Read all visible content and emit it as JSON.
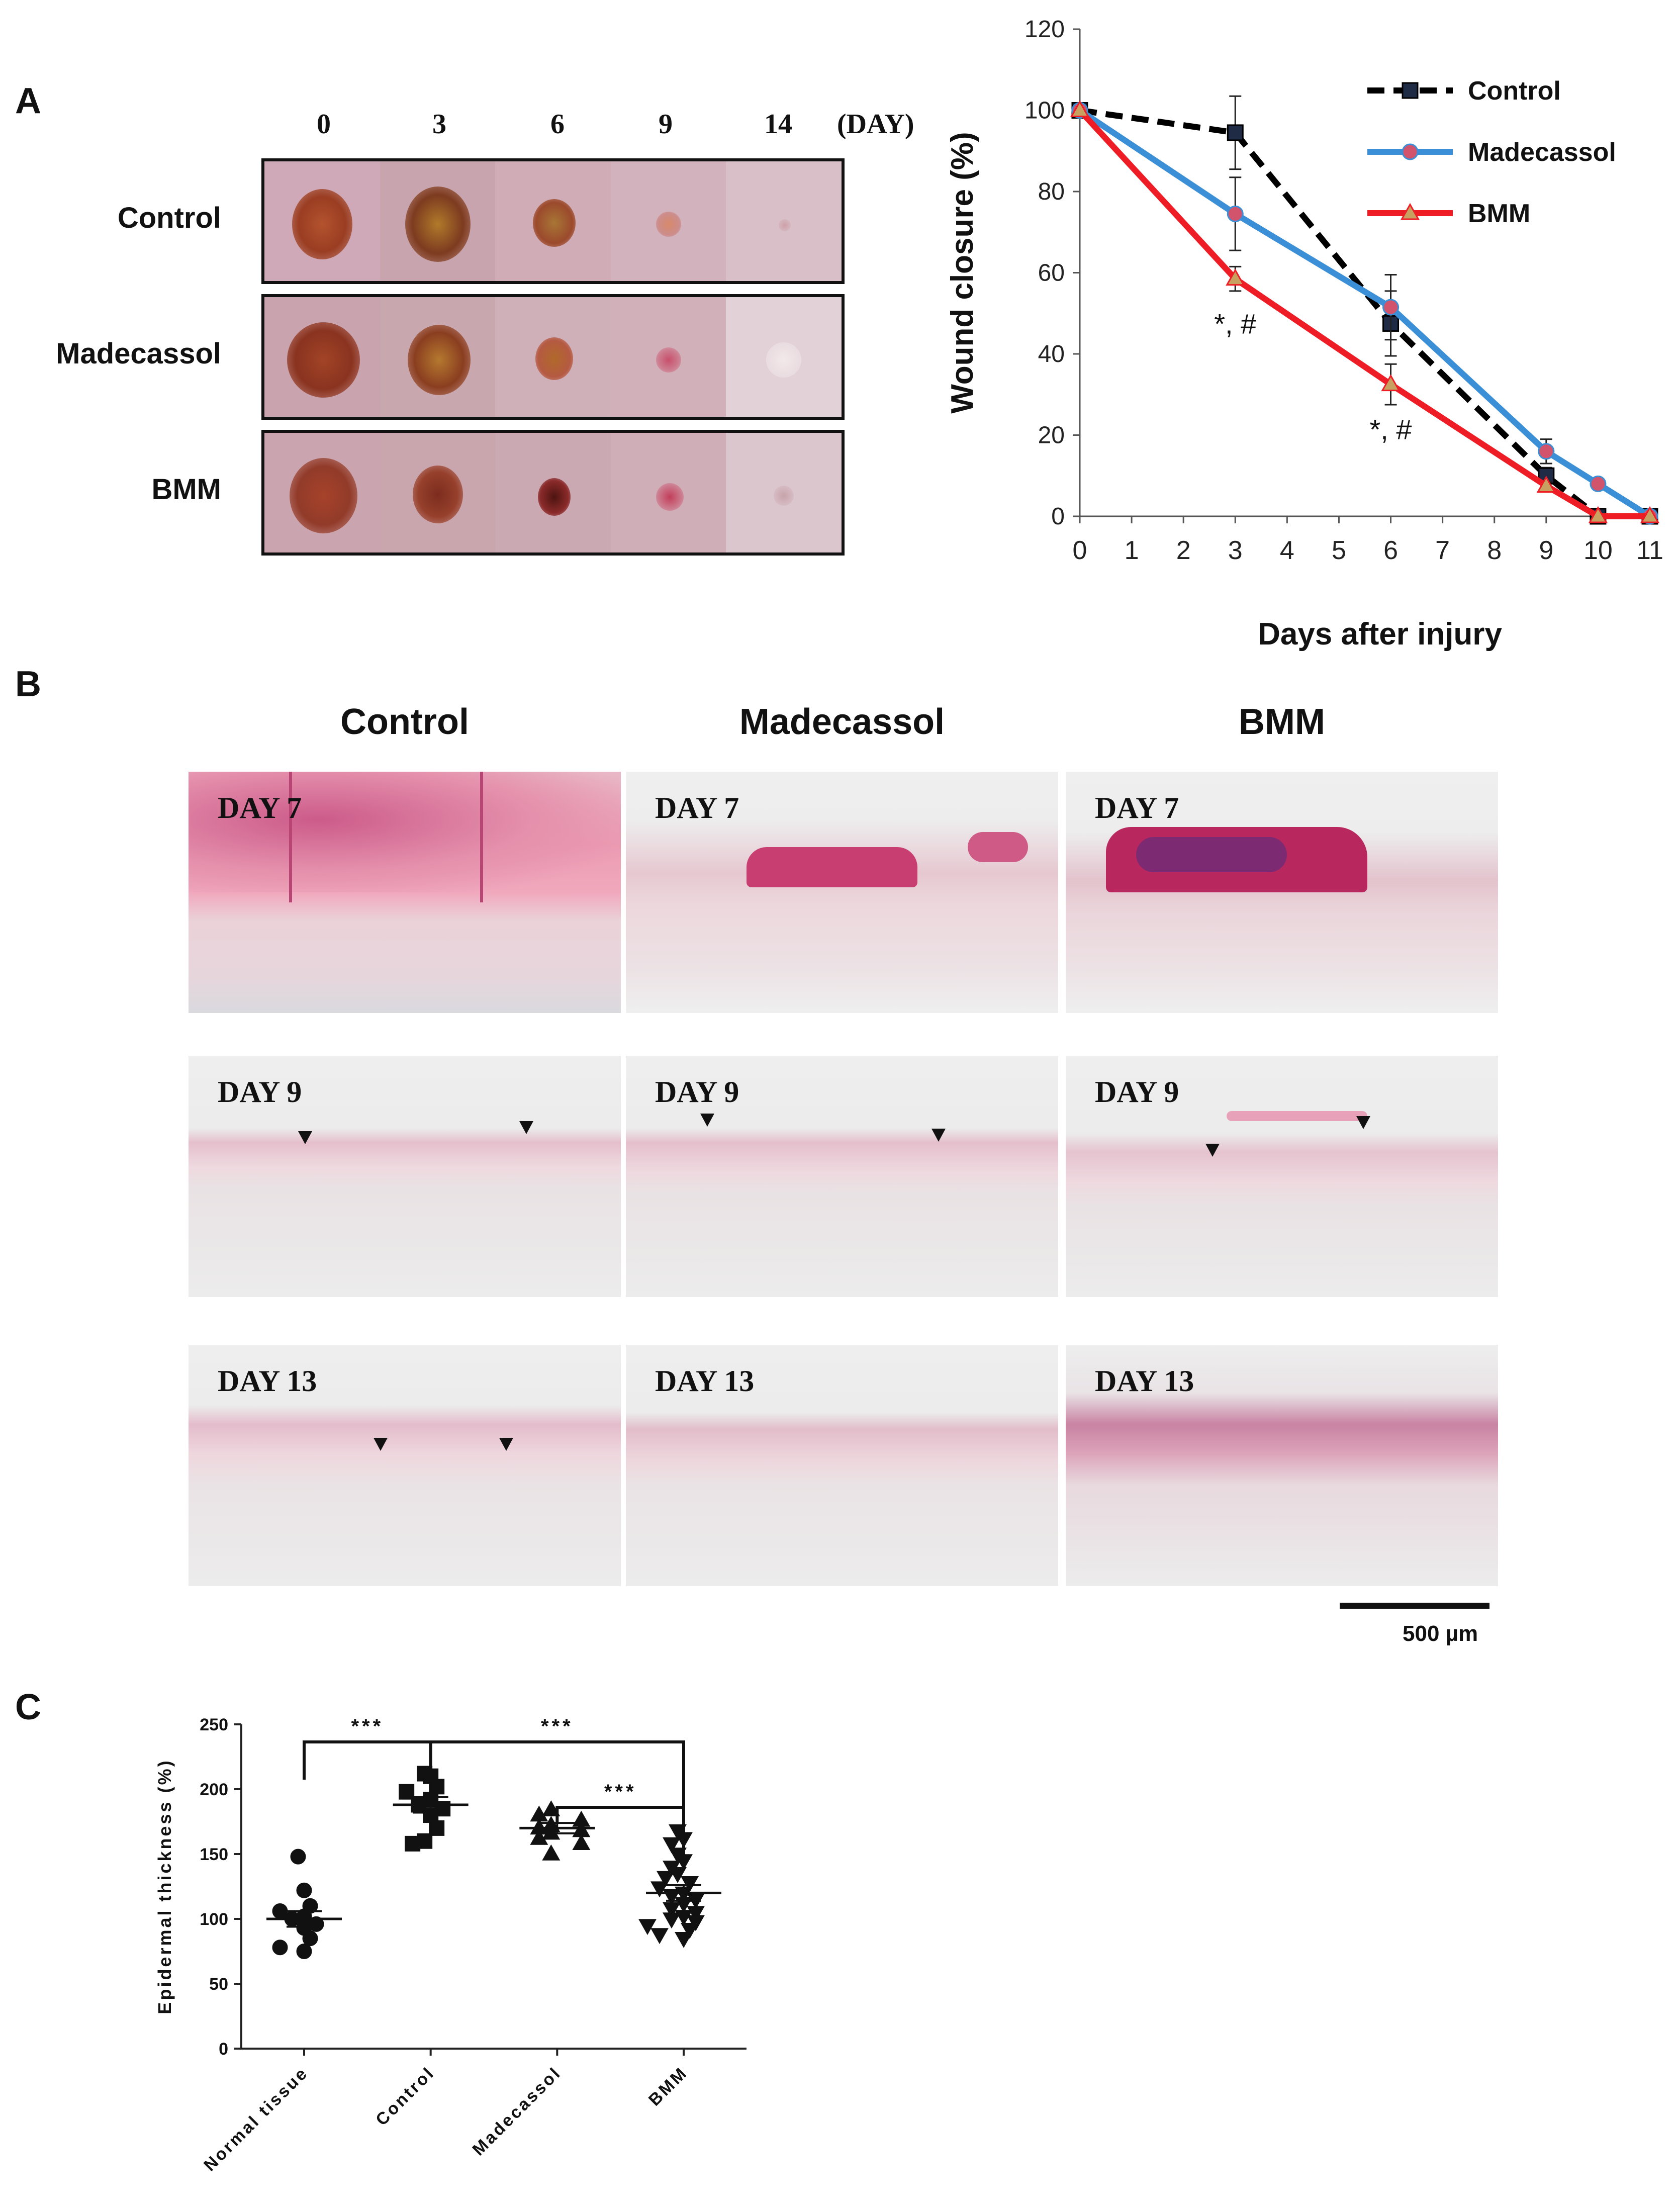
{
  "panelA": {
    "letter": "A",
    "day_headers": [
      "0",
      "3",
      "6",
      "9",
      "14"
    ],
    "day_unit": "(DAY)",
    "rows": [
      "Control",
      "Madecassol",
      "BMM"
    ]
  },
  "panelB": {
    "letter": "B",
    "columns": [
      "Control",
      "Madecassol",
      "BMM"
    ],
    "row_days": [
      "DAY 7",
      "DAY 9",
      "DAY 13"
    ],
    "scale_label": "500 µm"
  },
  "panelC": {
    "letter": "C"
  },
  "chart_data": [
    {
      "type": "line",
      "title": "",
      "xlabel": "Days after injury",
      "ylabel": "Wound closure (%)",
      "xlim": [
        0,
        11
      ],
      "ylim": [
        0,
        120
      ],
      "xticks": [
        "0",
        "1",
        "2",
        "3",
        "4",
        "5",
        "6",
        "7",
        "8",
        "9",
        "10",
        "11"
      ],
      "yticks": [
        "0",
        "20",
        "40",
        "60",
        "80",
        "100",
        "120"
      ],
      "legend_position": "top-right",
      "series": [
        {
          "name": "Control",
          "color": "#000000",
          "dashed": true,
          "marker": "square",
          "marker_color": "#1f2a44",
          "x": [
            0,
            3,
            6,
            9,
            10,
            11
          ],
          "y": [
            100,
            94.5,
            47.5,
            10,
            0,
            0
          ],
          "err": [
            0,
            9,
            8,
            2,
            0,
            0
          ]
        },
        {
          "name": "Madecassol",
          "color": "#3a8fd6",
          "dashed": false,
          "marker": "circle",
          "marker_color": "#d2546c",
          "x": [
            0,
            3,
            6,
            9,
            10,
            11
          ],
          "y": [
            100,
            74.5,
            51.5,
            16,
            8,
            0
          ],
          "err": [
            0,
            9,
            8,
            3,
            1,
            0
          ]
        },
        {
          "name": "BMM",
          "color": "#ee1c25",
          "dashed": false,
          "marker": "triangle",
          "marker_color": "#c8a060",
          "x": [
            0,
            3,
            6,
            9,
            10,
            11
          ],
          "y": [
            100,
            58.5,
            32.5,
            7.5,
            0,
            0
          ],
          "err": [
            0,
            3,
            5,
            1,
            0,
            0
          ]
        }
      ],
      "annotations": [
        {
          "text": "*, #",
          "x": 3,
          "y": 45
        },
        {
          "text": "*, #",
          "x": 6,
          "y": 19
        }
      ]
    },
    {
      "type": "scatter",
      "title": "",
      "xlabel": "",
      "ylabel": "Epidermal thickness (%)",
      "ylim": [
        0,
        250
      ],
      "yticks": [
        "0",
        "50",
        "100",
        "150",
        "200",
        "250"
      ],
      "categories": [
        "Normal tissue",
        "Control",
        "Madecassol",
        "BMM"
      ],
      "groups": [
        {
          "name": "Normal tissue",
          "marker": "circle",
          "mean": 100,
          "sem": 6,
          "values": [
            148,
            122,
            110,
            106,
            102,
            100,
            96,
            93,
            85,
            78,
            75
          ]
        },
        {
          "name": "Control",
          "marker": "square",
          "mean": 188,
          "sem": 6,
          "values": [
            212,
            210,
            202,
            198,
            192,
            188,
            185,
            180,
            170,
            160,
            158
          ]
        },
        {
          "name": "Madecassol",
          "marker": "triangle",
          "mean": 170,
          "sem": 4,
          "values": [
            184,
            180,
            176,
            172,
            170,
            168,
            166,
            162,
            158,
            150
          ]
        },
        {
          "name": "BMM",
          "marker": "inverted-triangle",
          "mean": 120,
          "sem": 6,
          "values": [
            168,
            162,
            158,
            150,
            145,
            140,
            135,
            132,
            128,
            124,
            120,
            118,
            115,
            112,
            108,
            105,
            102,
            100,
            98,
            95,
            92,
            88,
            85
          ]
        }
      ],
      "significance": [
        {
          "from": "Normal tissue",
          "to": "Control",
          "label": "***"
        },
        {
          "from": "Control",
          "to": "BMM",
          "label": "***"
        },
        {
          "from": "Madecassol",
          "to": "BMM",
          "label": "***"
        }
      ]
    }
  ]
}
